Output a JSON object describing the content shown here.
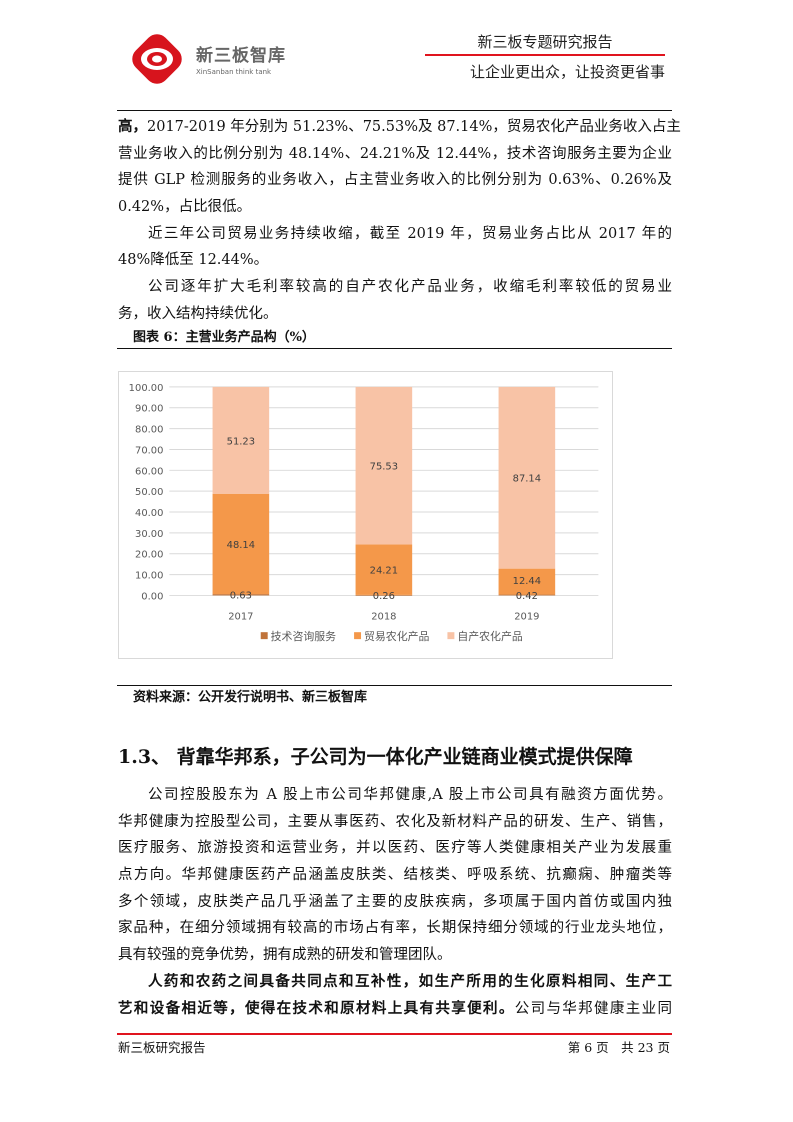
{
  "header": {
    "logo_cn": "新三板智库",
    "logo_en": "XinSanban think tank",
    "report_type": "新三板专题研究报告",
    "slogan": "让企业更出众，让投资更省事"
  },
  "para1": {
    "bold": "高，",
    "lines": [
      "2017-2019 年分别为 51.23%、75.53%及 87.14%，贸易农化产品业务收入占主",
      "营业务收入的比例分别为 48.14%、24.21%及 12.44%，技术咨询服务主要为企业",
      "提供 GLP 检测服务的业务收入，占主营业务收入的比例分别为 0.63%、0.26%及",
      "0.42%，占比很低。"
    ]
  },
  "para2": {
    "lines": [
      "近三年公司贸易业务持续收缩，截至 2019 年，贸易业务占比从 2017 年的",
      "48%降低至 12.44%。"
    ]
  },
  "para3": {
    "lines": [
      "公司逐年扩大毛利率较高的自产农化产品业务，收缩毛利率较低的贸易业",
      "务，收入结构持续优化。"
    ]
  },
  "figure_caption": "图表 6：主营业务产品构（%）",
  "chart_data": {
    "type": "bar",
    "stacked": true,
    "categories": [
      "2017",
      "2018",
      "2019"
    ],
    "series": [
      {
        "name": "技术咨询服务",
        "values": [
          0.63,
          0.26,
          0.42
        ],
        "color": "#c0733a"
      },
      {
        "name": "贸易农化产品",
        "values": [
          48.14,
          24.21,
          12.44
        ],
        "color": "#f4984a"
      },
      {
        "name": "自产农化产品",
        "values": [
          51.23,
          75.53,
          87.14
        ],
        "color": "#f8c3a6"
      }
    ],
    "ylim": [
      0,
      100
    ],
    "yticks": [
      "0.00",
      "10.00",
      "20.00",
      "30.00",
      "40.00",
      "50.00",
      "60.00",
      "70.00",
      "80.00",
      "90.00",
      "100.00"
    ],
    "data_labels": [
      [
        "0.63",
        "0.26",
        "0.42"
      ],
      [
        "48.14",
        "24.21",
        "12.44"
      ],
      [
        "51.23",
        "75.53",
        "87.14"
      ]
    ],
    "grid": true,
    "legend": "bottom"
  },
  "source": "资料来源：公开发行说明书、新三板智库",
  "section_heading": "1.3、 背靠华邦系，子公司为一体化产业链商业模式提供保障",
  "para4": {
    "lines": [
      "公司控股股东为 A 股上市公司华邦健康,A 股上市公司具有融资方面优势。",
      "华邦健康为控股型公司，主要从事医药、农化及新材料产品的研发、生产、销售，",
      "医疗服务、旅游投资和运营业务，并以医药、医疗等人类健康相关产业为发展重",
      "点方向。华邦健康医药产品涵盖皮肤类、结核类、呼吸系统、抗癫痫、肿瘤类等",
      "多个领域，皮肤类产品几乎涵盖了主要的皮肤疾病，多项属于国内首仿或国内独",
      "家品种，在细分领域拥有较高的市场占有率，长期保持细分领域的行业龙头地位，",
      "具有较强的竞争优势，拥有成熟的研发和管理团队。"
    ]
  },
  "para5": {
    "bold_lines": [
      "人药和农药之间具备共同点和互补性，如生产所用的生化原料相同、生产工",
      "艺和设备相近等，使得在技术和原材料上具有共享便利。"
    ],
    "tail": "公司与华邦健康主业同"
  },
  "footer": {
    "left": "新三板研究报告",
    "page": "第 6 页　共 23 页"
  }
}
